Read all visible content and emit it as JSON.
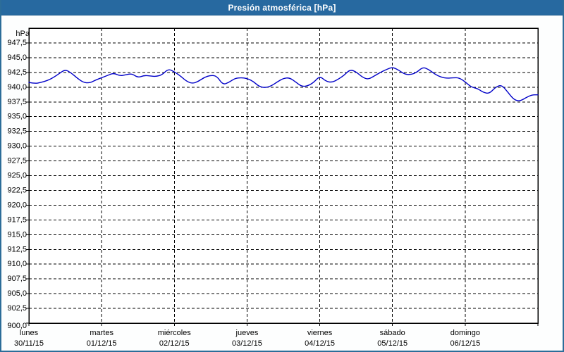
{
  "window": {
    "title": "Presión atmosférica [hPa]"
  },
  "colors": {
    "titlebar_bg": "#2769a0",
    "titlebar_text": "#ffffff",
    "frame_border": "#2c6d99",
    "plot_background": "#ffffff",
    "grid_color": "#000000",
    "axis_color": "#000000",
    "text_color": "#000000",
    "line_color": "#0000c8"
  },
  "chart_data": {
    "type": "line",
    "title": "Presión atmosférica [hPa]",
    "ylabel": "hPa",
    "xlabel": "",
    "ylim": [
      900,
      950
    ],
    "ytick_step": 2.5,
    "grid": "dashed",
    "legend": "none",
    "yticks": [
      {
        "label": "947,5",
        "value": 947.5
      },
      {
        "label": "945,0",
        "value": 945.0
      },
      {
        "label": "942,5",
        "value": 942.5
      },
      {
        "label": "940,0",
        "value": 940.0
      },
      {
        "label": "937,5",
        "value": 937.5
      },
      {
        "label": "935,0",
        "value": 935.0
      },
      {
        "label": "932,5",
        "value": 932.5
      },
      {
        "label": "930,0",
        "value": 930.0
      },
      {
        "label": "927,5",
        "value": 927.5
      },
      {
        "label": "925,0",
        "value": 925.0
      },
      {
        "label": "922,5",
        "value": 922.5
      },
      {
        "label": "920,0",
        "value": 920.0
      },
      {
        "label": "917,5",
        "value": 917.5
      },
      {
        "label": "915,0",
        "value": 915.0
      },
      {
        "label": "912,5",
        "value": 912.5
      },
      {
        "label": "910,0",
        "value": 910.0
      },
      {
        "label": "907,5",
        "value": 907.5
      },
      {
        "label": "905,0",
        "value": 905.0
      },
      {
        "label": "902,5",
        "value": 902.5
      },
      {
        "label": "900,0",
        "value": 900.0
      }
    ],
    "x_days": [
      {
        "name": "lunes",
        "date": "30/11/15"
      },
      {
        "name": "martes",
        "date": "01/12/15"
      },
      {
        "name": "miércoles",
        "date": "02/12/15"
      },
      {
        "name": "jueves",
        "date": "03/12/15"
      },
      {
        "name": "viernes",
        "date": "04/12/15"
      },
      {
        "name": "sábado",
        "date": "05/12/15"
      },
      {
        "name": "domingo",
        "date": "06/12/15"
      }
    ],
    "hours_total": 168,
    "sample_step_hours": 2,
    "values": [
      940.8,
      940.6,
      940.8,
      941.1,
      941.6,
      942.3,
      943.0,
      942.4,
      941.5,
      940.8,
      940.7,
      941.2,
      941.6,
      942.0,
      942.4,
      941.9,
      942.1,
      942.3,
      941.6,
      942.0,
      941.9,
      941.8,
      942.1,
      943.1,
      942.6,
      941.9,
      941.0,
      940.6,
      941.0,
      941.7,
      942.0,
      941.9,
      940.4,
      940.8,
      941.5,
      941.6,
      941.5,
      941.0,
      940.1,
      939.9,
      940.2,
      940.9,
      941.5,
      941.6,
      940.9,
      940.1,
      940.2,
      940.8,
      941.9,
      941.0,
      940.8,
      941.3,
      942.0,
      943.0,
      942.6,
      941.7,
      941.3,
      941.9,
      942.5,
      943.0,
      943.4,
      942.9,
      942.2,
      942.1,
      942.5,
      943.4,
      943.0,
      942.2,
      941.7,
      941.5,
      941.6,
      941.6,
      940.9,
      940.0,
      939.8,
      939.1,
      938.9,
      940.0,
      940.4,
      939.2,
      937.9,
      937.6,
      938.2,
      938.7,
      938.7
    ]
  }
}
